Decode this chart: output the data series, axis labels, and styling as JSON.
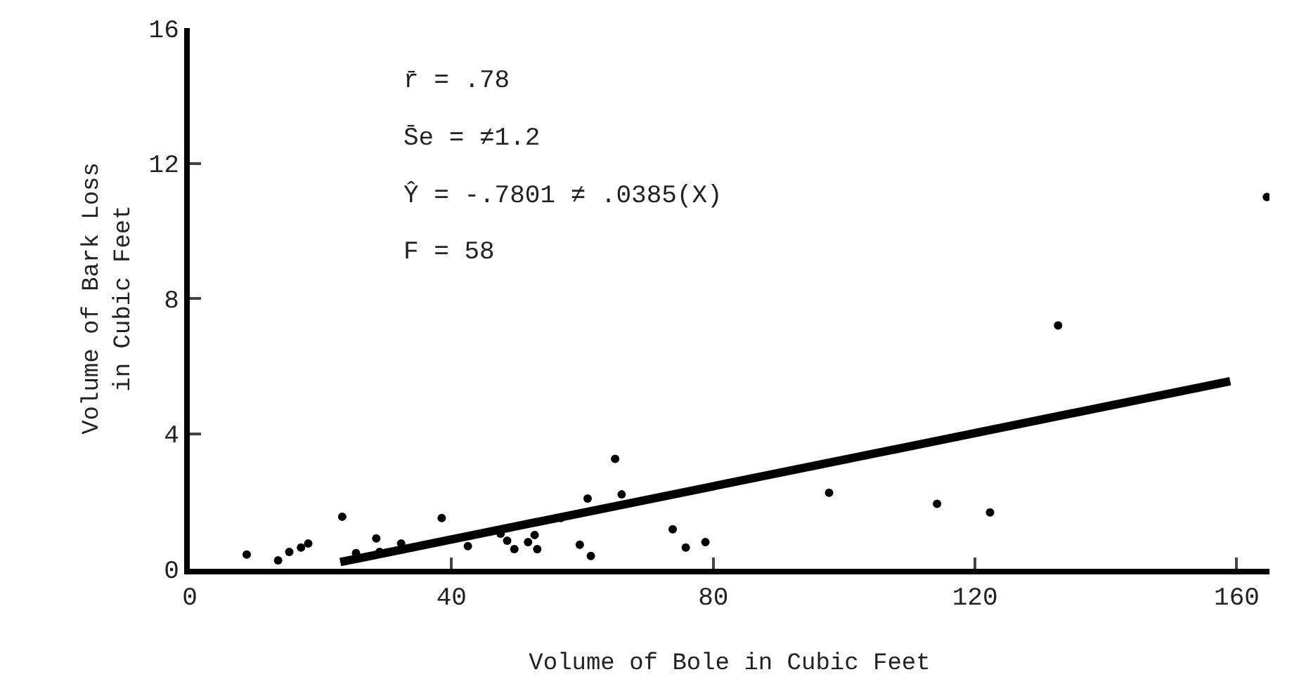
{
  "chart_data": {
    "type": "scatter",
    "xlabel": "Volume of Bole in Cubic Feet",
    "ylabel": "Volume of Bark Loss\nin Cubic Feet",
    "xlim": [
      0,
      165
    ],
    "ylim": [
      0,
      16
    ],
    "xticks": [
      0,
      40,
      80,
      120,
      160
    ],
    "yticks": [
      0,
      4,
      8,
      12,
      16
    ],
    "annotations": [
      "r̄ = .78",
      "S̄e = ≠1.2",
      "Ŷ = -.7801 ≠ .0385(X)",
      "F = 58"
    ],
    "series": [
      {
        "marker": "circle",
        "color": "#000000",
        "x": [
          8.7,
          13.5,
          15.2,
          17,
          18.1,
          23.3,
          25.4,
          28.5,
          29,
          32.3,
          38.5,
          42.5,
          47.5,
          48.5,
          49.6,
          51.7,
          52.7,
          53.1,
          56.7,
          59.6,
          61.3,
          60.8,
          65,
          66,
          73.8,
          75.8,
          78.8,
          97.7,
          114.2,
          122.3,
          132.7,
          164.6
        ],
        "values": [
          0.42,
          0.25,
          0.5,
          0.63,
          0.75,
          1.54,
          0.46,
          0.9,
          0.5,
          0.75,
          1.5,
          0.67,
          1.04,
          0.83,
          0.58,
          0.79,
          1.0,
          0.58,
          1.5,
          0.71,
          0.38,
          2.08,
          3.25,
          2.2,
          1.17,
          0.63,
          0.79,
          2.25,
          1.92,
          1.67,
          7.2,
          11.0
        ]
      },
      {
        "type": "line",
        "marker": "none",
        "color": "#000000",
        "x": [
          23,
          159
        ],
        "values": [
          0.2,
          5.55
        ]
      }
    ]
  }
}
